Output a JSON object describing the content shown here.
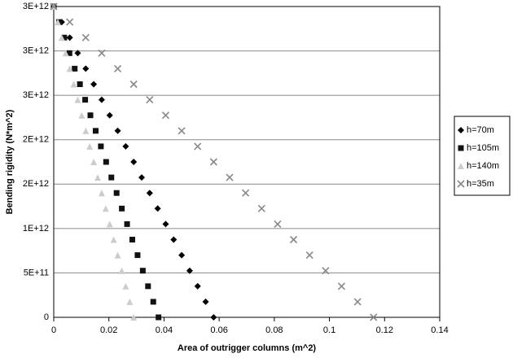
{
  "chart_data": {
    "type": "scatter",
    "xlabel": "Area of outrigger columns (m^2)",
    "ylabel": "Bending rigidity (N*m^2)",
    "xlim": [
      0,
      0.14
    ],
    "xticks": [
      0,
      0.02,
      0.04,
      0.06,
      0.08,
      0.1,
      0.12,
      0.14
    ],
    "ylim": [
      0,
      3500000000000.0
    ],
    "yticks": [
      0,
      {
        "value": 500000000000.0,
        "label": "5E+11"
      },
      {
        "value": 1000000000000.0,
        "label": "1E+12"
      },
      {
        "value": 1500000000000.0,
        "label": "2E+12"
      },
      {
        "value": 2000000000000.0,
        "label": "2E+12"
      },
      {
        "value": 2500000000000.0,
        "label": "3E+12"
      },
      {
        "value": 3000000000000.0,
        "label": "3E+12"
      },
      {
        "value": 3500000000000.0,
        "label": "3E+12"
      }
    ],
    "grid": true,
    "legend": "right",
    "series": [
      {
        "name": "h=70m",
        "color": "#000000",
        "marker": "diamond",
        "x": [
          0,
          0.0029,
          0.0058,
          0.0087,
          0.0116,
          0.0145,
          0.0174,
          0.0203,
          0.0232,
          0.0261,
          0.029,
          0.0319,
          0.0348,
          0.0377,
          0.0406,
          0.0435,
          0.0464,
          0.0493,
          0.0522,
          0.0551,
          0.058
        ],
        "values": [
          3500000000000.0,
          3325000000000.0,
          3150000000000.0,
          2975000000000.0,
          2800000000000.0,
          2625000000000.0,
          2450000000000.0,
          2275000000000.0,
          2100000000000.0,
          1925000000000.0,
          1750000000000.0,
          1575000000000.0,
          1400000000000.0,
          1225000000000.0,
          1050000000000.0,
          875000000000.0,
          700000000000.0,
          525000000000.0,
          350000000000.0,
          175000000000.0,
          0
        ]
      },
      {
        "name": "h=105m",
        "color": "#111111",
        "marker": "square",
        "x": [
          0,
          0.0019,
          0.0038,
          0.0057,
          0.0076,
          0.0095,
          0.0114,
          0.0133,
          0.0152,
          0.0171,
          0.019,
          0.0209,
          0.0228,
          0.0247,
          0.0266,
          0.0285,
          0.0304,
          0.0323,
          0.0342,
          0.0361,
          0.038
        ],
        "values": [
          3500000000000.0,
          3325000000000.0,
          3150000000000.0,
          2975000000000.0,
          2800000000000.0,
          2625000000000.0,
          2450000000000.0,
          2275000000000.0,
          2100000000000.0,
          1925000000000.0,
          1750000000000.0,
          1575000000000.0,
          1400000000000.0,
          1225000000000.0,
          1050000000000.0,
          875000000000.0,
          700000000000.0,
          525000000000.0,
          350000000000.0,
          175000000000.0,
          0
        ]
      },
      {
        "name": "h=140m",
        "color": "#cccccc",
        "marker": "triangle",
        "x": [
          0,
          0.00145,
          0.0029,
          0.00435,
          0.0058,
          0.00725,
          0.0087,
          0.01015,
          0.0116,
          0.01305,
          0.0145,
          0.01595,
          0.0174,
          0.01885,
          0.0203,
          0.02175,
          0.0232,
          0.02465,
          0.0261,
          0.02755,
          0.029
        ],
        "values": [
          3500000000000.0,
          3325000000000.0,
          3150000000000.0,
          2975000000000.0,
          2800000000000.0,
          2625000000000.0,
          2450000000000.0,
          2275000000000.0,
          2100000000000.0,
          1925000000000.0,
          1750000000000.0,
          1575000000000.0,
          1400000000000.0,
          1225000000000.0,
          1050000000000.0,
          875000000000.0,
          700000000000.0,
          525000000000.0,
          350000000000.0,
          175000000000.0,
          0
        ]
      },
      {
        "name": "h=35m",
        "color": "#888888",
        "marker": "x",
        "x": [
          0,
          0.0058,
          0.0116,
          0.0174,
          0.0232,
          0.029,
          0.0348,
          0.0406,
          0.0464,
          0.0522,
          0.058,
          0.0638,
          0.0696,
          0.0754,
          0.0812,
          0.087,
          0.0928,
          0.0986,
          0.1044,
          0.1102,
          0.116
        ],
        "values": [
          3500000000000.0,
          3325000000000.0,
          3150000000000.0,
          2975000000000.0,
          2800000000000.0,
          2625000000000.0,
          2450000000000.0,
          2275000000000.0,
          2100000000000.0,
          1925000000000.0,
          1750000000000.0,
          1575000000000.0,
          1400000000000.0,
          1225000000000.0,
          1050000000000.0,
          875000000000.0,
          700000000000.0,
          525000000000.0,
          350000000000.0,
          175000000000.0,
          0
        ]
      }
    ]
  }
}
